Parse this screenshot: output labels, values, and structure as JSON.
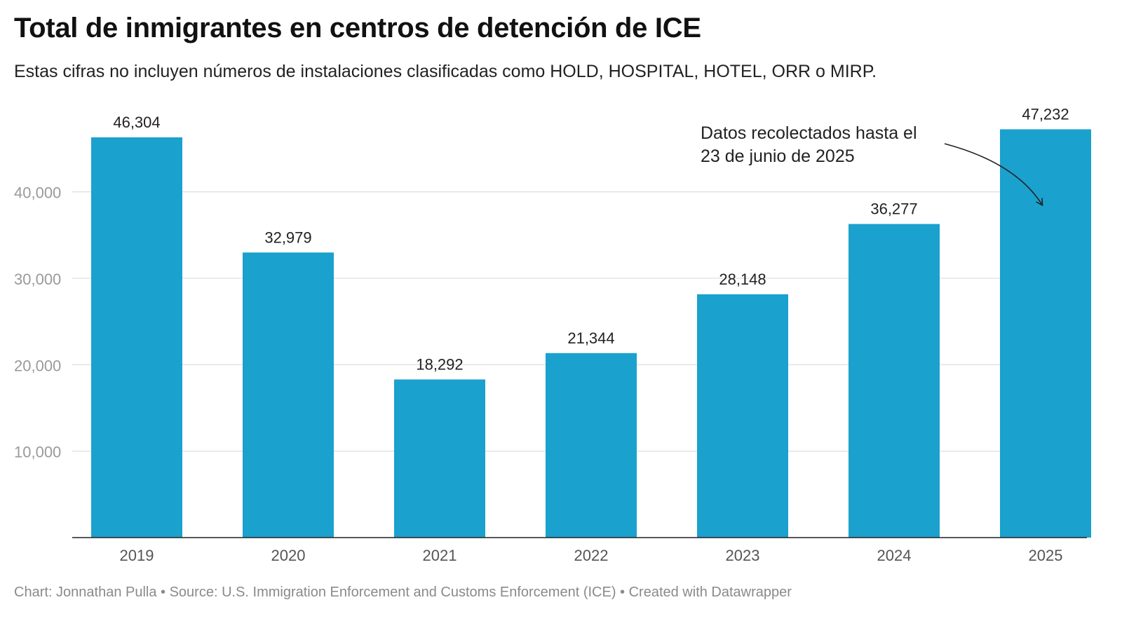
{
  "title": "Total de inmigrantes en centros de detención de ICE",
  "subtitle": "Estas cifras no incluyen números de instalaciones clasificadas como HOLD, HOSPITAL, HOTEL, ORR o MIRP.",
  "footer": "Chart: Jonnathan Pulla • Source: U.S. Immigration Enforcement and Customs Enforcement (ICE) • Created with Datawrapper",
  "colors": {
    "bar": "#1aa1ce",
    "grid": "#e0e0e0",
    "axis": "#222222",
    "tick_label": "#9a9a9a",
    "x_label": "#555555"
  },
  "chart_data": {
    "type": "bar",
    "title": "Total de inmigrantes en centros de detención de ICE",
    "subtitle": "Estas cifras no incluyen números de instalaciones clasificadas como HOLD, HOSPITAL, HOTEL, ORR o MIRP.",
    "xlabel": "",
    "ylabel": "",
    "categories": [
      "2019",
      "2020",
      "2021",
      "2022",
      "2023",
      "2024",
      "2025"
    ],
    "values": [
      46304,
      32979,
      18292,
      21344,
      28148,
      36277,
      47232
    ],
    "value_labels": [
      "46,304",
      "32,979",
      "18,292",
      "21,344",
      "28,148",
      "36,277",
      "47,232"
    ],
    "ylim": [
      0,
      48000
    ],
    "y_ticks": [
      10000,
      20000,
      30000,
      40000
    ],
    "y_tick_labels": [
      "10,000",
      "20,000",
      "30,000",
      "40,000"
    ],
    "grid": true,
    "annotation": {
      "lines": [
        "Datos recolectados hasta el",
        "23 de junio de 2025"
      ],
      "target_category": "2025"
    }
  }
}
